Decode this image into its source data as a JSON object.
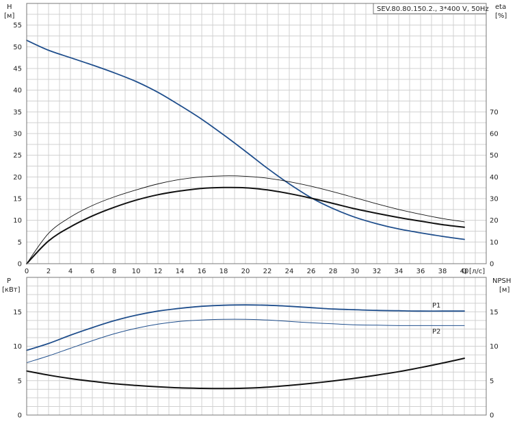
{
  "chart_data": [
    {
      "type": "line",
      "title": "SEV.80.80.150.2., 3*400 V, 50Hz",
      "x_unit_label": "Q [л/с]",
      "left_axis": {
        "label": "H",
        "unit": "[м]",
        "ticks": [
          0,
          5,
          10,
          15,
          20,
          25,
          30,
          35,
          40,
          45,
          50,
          55
        ],
        "ylim": [
          0,
          60
        ]
      },
      "right_axis": {
        "label": "eta",
        "unit": "[%]",
        "ticks": [
          0,
          10,
          20,
          30,
          40,
          50,
          60,
          70
        ],
        "ylim": [
          0,
          120
        ]
      },
      "x_ticks": [
        0,
        2,
        4,
        6,
        8,
        10,
        12,
        14,
        16,
        18,
        20,
        22,
        24,
        26,
        28,
        30,
        32,
        34,
        36,
        38,
        40
      ],
      "xlim": [
        0,
        42
      ],
      "grid": true,
      "series": [
        {
          "key": "H",
          "axis": "left",
          "color": "#1f4e8c",
          "width": 1.8,
          "x": [
            0,
            2,
            4,
            6,
            8,
            10,
            12,
            14,
            16,
            18,
            20,
            22,
            24,
            26,
            28,
            30,
            32,
            34,
            36,
            38,
            40
          ],
          "y": [
            51.5,
            49.2,
            47.5,
            45.8,
            44.0,
            42.0,
            39.5,
            36.5,
            33.3,
            29.7,
            25.9,
            22.0,
            18.4,
            15.2,
            12.7,
            10.7,
            9.2,
            8.0,
            7.1,
            6.3,
            5.6
          ]
        },
        {
          "key": "eta_thin",
          "axis": "right",
          "color": "#111",
          "width": 0.9,
          "x": [
            0,
            2,
            4,
            6,
            8,
            10,
            12,
            14,
            16,
            18,
            20,
            22,
            24,
            26,
            28,
            30,
            32,
            34,
            36,
            38,
            40
          ],
          "y": [
            0,
            14,
            21.5,
            26.8,
            30.8,
            34.0,
            36.8,
            38.8,
            40.0,
            40.5,
            40.3,
            39.4,
            37.8,
            35.7,
            33.2,
            30.4,
            27.6,
            25.0,
            22.8,
            20.8,
            19.3
          ]
        },
        {
          "key": "eta_thick",
          "axis": "right",
          "color": "#111",
          "width": 2.0,
          "x": [
            0,
            2,
            4,
            6,
            8,
            10,
            12,
            14,
            16,
            18,
            20,
            22,
            24,
            26,
            28,
            30,
            32,
            34,
            36,
            38,
            40
          ],
          "y": [
            0,
            10.5,
            17.0,
            22.0,
            26.0,
            29.3,
            31.8,
            33.5,
            34.7,
            35.1,
            35.0,
            34.0,
            32.3,
            30.2,
            27.8,
            25.3,
            23.2,
            21.3,
            19.6,
            18.0,
            16.8
          ]
        }
      ]
    },
    {
      "type": "line",
      "x_ticks": [
        0,
        2,
        4,
        6,
        8,
        10,
        12,
        14,
        16,
        18,
        20,
        22,
        24,
        26,
        28,
        30,
        32,
        34,
        36,
        38,
        40
      ],
      "xlim": [
        0,
        42
      ],
      "left_axis": {
        "label": "P",
        "unit": "[кВт]",
        "ticks": [
          0,
          5,
          10,
          15
        ],
        "ylim": [
          0,
          20
        ]
      },
      "right_axis": {
        "label": "NPSH",
        "unit": "[м]",
        "ticks": [
          0,
          5,
          10,
          15
        ],
        "ylim": [
          0,
          20
        ]
      },
      "grid": true,
      "series": [
        {
          "name": "P1",
          "key": "P1",
          "color": "#1f4e8c",
          "width": 1.8,
          "x": [
            0,
            2,
            4,
            6,
            8,
            10,
            12,
            14,
            16,
            18,
            20,
            22,
            24,
            26,
            28,
            30,
            32,
            34,
            36,
            38,
            40
          ],
          "y": [
            9.4,
            10.4,
            11.6,
            12.7,
            13.7,
            14.5,
            15.1,
            15.5,
            15.8,
            15.95,
            16.0,
            15.95,
            15.8,
            15.6,
            15.4,
            15.3,
            15.2,
            15.15,
            15.1,
            15.1,
            15.1
          ]
        },
        {
          "name": "P2",
          "key": "P2",
          "color": "#1f4e8c",
          "width": 1.0,
          "x": [
            0,
            2,
            4,
            6,
            8,
            10,
            12,
            14,
            16,
            18,
            20,
            22,
            24,
            26,
            28,
            30,
            32,
            34,
            36,
            38,
            40
          ],
          "y": [
            7.6,
            8.6,
            9.7,
            10.8,
            11.8,
            12.6,
            13.2,
            13.6,
            13.8,
            13.9,
            13.9,
            13.8,
            13.6,
            13.4,
            13.25,
            13.1,
            13.05,
            13.0,
            13.0,
            13.0,
            13.0
          ]
        },
        {
          "key": "NPSH",
          "color": "#111",
          "width": 2.0,
          "x": [
            0,
            2,
            4,
            6,
            8,
            10,
            12,
            14,
            16,
            18,
            20,
            22,
            24,
            26,
            28,
            30,
            32,
            34,
            36,
            38,
            40
          ],
          "y": [
            6.4,
            5.8,
            5.3,
            4.9,
            4.55,
            4.3,
            4.1,
            3.95,
            3.88,
            3.85,
            3.9,
            4.05,
            4.3,
            4.6,
            4.95,
            5.35,
            5.8,
            6.3,
            6.9,
            7.55,
            8.25
          ]
        }
      ]
    }
  ]
}
